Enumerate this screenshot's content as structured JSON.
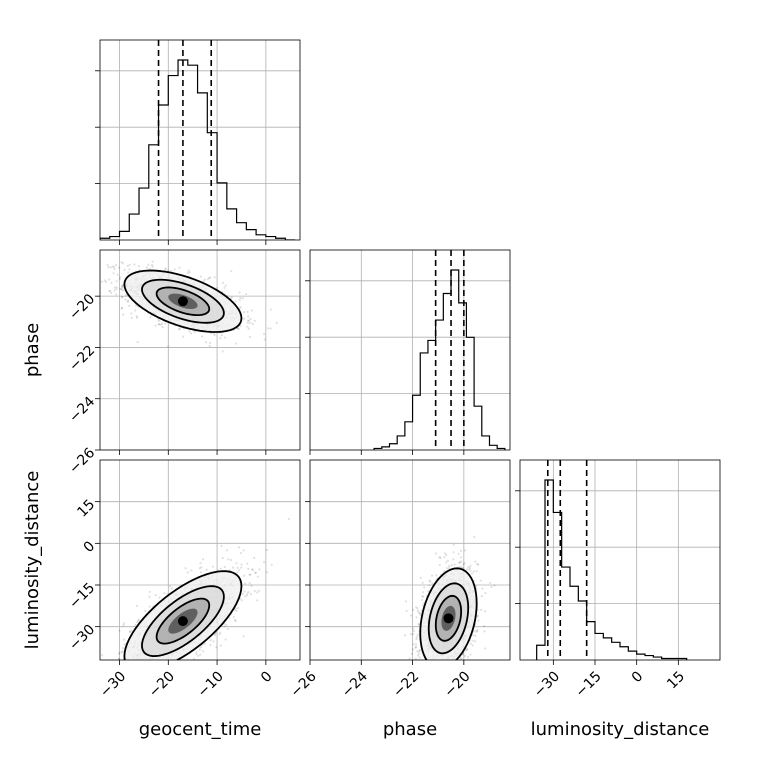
{
  "chart_data": {
    "type": "corner",
    "parameters": [
      "geocent_time",
      "phase",
      "luminosity_distance"
    ],
    "axis_labels": {
      "geocent_time": "geocent_time",
      "phase": "phase",
      "luminosity_distance": "luminosity_distance"
    },
    "ranges": {
      "geocent_time": [
        -34,
        7
      ],
      "phase": [
        -26,
        -18.2
      ],
      "luminosity_distance": [
        -42,
        30
      ]
    },
    "ticks": {
      "geocent_time": [
        -30,
        -20,
        -10,
        0
      ],
      "phase": [
        -26,
        -24,
        -22,
        -20
      ],
      "luminosity_distance": [
        -30,
        -15,
        0,
        15
      ]
    },
    "tick_labels": {
      "geocent_time": [
        "−30",
        "−20",
        "−10",
        "0"
      ],
      "phase": [
        "−26",
        "−24",
        "−22",
        "−20"
      ],
      "luminosity_distance": [
        "−30",
        "−15",
        "0",
        "15"
      ]
    },
    "grid": true,
    "quantiles": {
      "geocent_time": [
        -22.0,
        -17.0,
        -11.2
      ],
      "phase": [
        -21.1,
        -20.5,
        -20.0
      ],
      "luminosity_distance": [
        -32.0,
        -27.5,
        -18.0
      ]
    },
    "histograms": {
      "geocent_time": {
        "edges": [
          -34,
          -32,
          -30,
          -28,
          -26,
          -24,
          -22,
          -20,
          -18,
          -16,
          -14,
          -12,
          -10,
          -8,
          -6,
          -4,
          -2,
          0,
          2,
          4,
          6
        ],
        "counts": [
          1,
          2,
          5,
          15,
          30,
          55,
          78,
          95,
          104,
          101,
          85,
          62,
          33,
          18,
          10,
          6,
          3,
          2,
          1,
          0
        ]
      },
      "phase": {
        "edges": [
          -23.5,
          -23.2,
          -22.9,
          -22.6,
          -22.3,
          -22.0,
          -21.7,
          -21.4,
          -21.1,
          -20.8,
          -20.5,
          -20.2,
          -19.9,
          -19.6,
          -19.3,
          -19.0,
          -18.7,
          -18.4
        ],
        "counts": [
          1,
          2,
          4,
          9,
          18,
          35,
          62,
          70,
          83,
          100,
          115,
          94,
          72,
          28,
          9,
          3,
          1
        ]
      },
      "luminosity_distance": {
        "edges": [
          -36,
          -33,
          -30,
          -27,
          -24,
          -21,
          -18,
          -15,
          -12,
          -9,
          -6,
          -3,
          0,
          3,
          6,
          9,
          12,
          15,
          18
        ],
        "counts": [
          10,
          122,
          100,
          63,
          50,
          40,
          26,
          18,
          15,
          12,
          9,
          6,
          4,
          3,
          2,
          1,
          1,
          1
        ]
      }
    },
    "scatter_2d": [
      {
        "x": "geocent_time",
        "y": "phase",
        "mean": [
          -17,
          -20.2
        ],
        "sd": [
          6.0,
          0.6
        ],
        "rho": -0.55
      },
      {
        "x": "geocent_time",
        "y": "luminosity_distance",
        "mean": [
          -17,
          -28
        ],
        "sd": [
          6.0,
          9.0
        ],
        "rho": 0.7
      },
      {
        "x": "phase",
        "y": "luminosity_distance",
        "mean": [
          -20.6,
          -27
        ],
        "sd": [
          0.55,
          9.0
        ],
        "rho": 0.3
      }
    ]
  }
}
